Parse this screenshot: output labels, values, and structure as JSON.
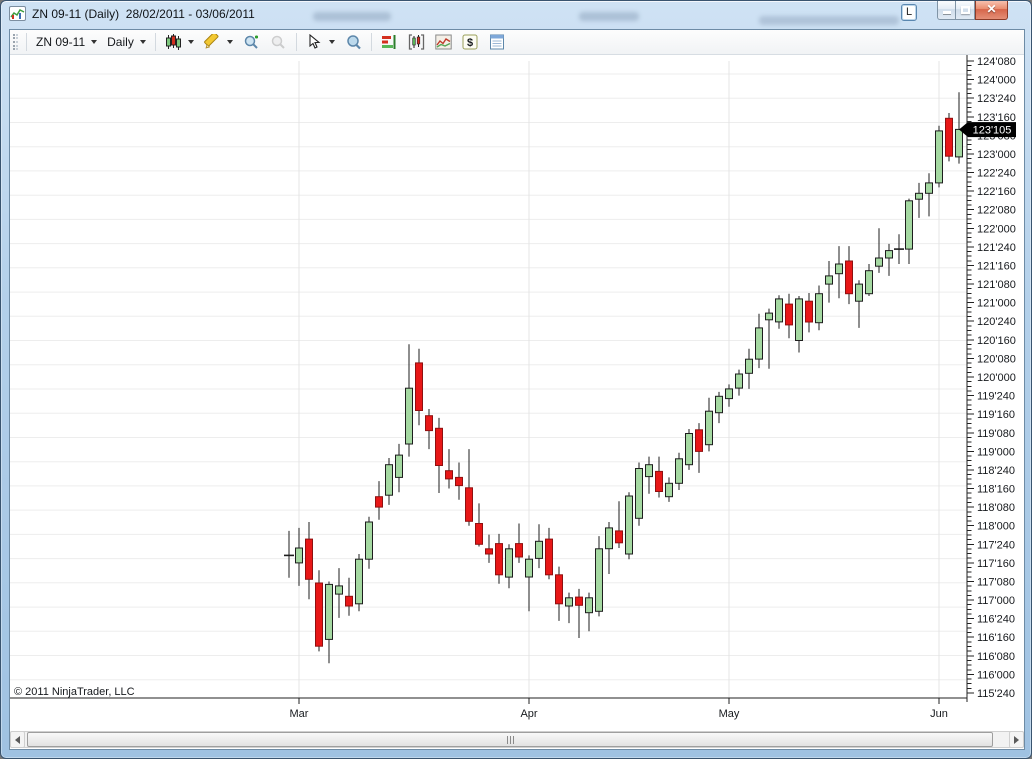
{
  "window": {
    "title": "ZN 09-11 (Daily)  28/02/2011 - 03/06/2011",
    "link_button_label": "L"
  },
  "toolbar": {
    "instrument": "ZN 09-11",
    "interval": "Daily",
    "icon_names": [
      "chart-style-candles",
      "drawing-pencil",
      "zoom-in",
      "zoom-out",
      "cursor-pointer",
      "magnifier",
      "market-depth",
      "data-series",
      "indicators",
      "account-dollar",
      "chart-properties"
    ]
  },
  "chart": {
    "copyright": "© 2011 NinjaTrader, LLC",
    "last_price_label": "123'105",
    "price_axis_labels": [
      "124'080",
      "124'000",
      "123'240",
      "123'160",
      "123'080",
      "123'000",
      "122'240",
      "122'160",
      "122'080",
      "122'000",
      "121'240",
      "121'160",
      "121'080",
      "121'000",
      "120'240",
      "120'160",
      "120'080",
      "120'000",
      "119'240",
      "119'160",
      "119'080",
      "119'000",
      "118'240",
      "118'160",
      "118'080",
      "118'000",
      "117'240",
      "117'160",
      "117'080",
      "117'000",
      "116'240",
      "116'160",
      "116'080",
      "116'000",
      "115'240"
    ]
  },
  "chart_data": {
    "type": "candlestick",
    "title": "ZN 09-11 (Daily)",
    "instrument": "ZN 09-11",
    "interval": "Daily",
    "date_range": "28/02/2011 - 03/06/2011",
    "price_format": "US Treasury 32nds (e.g. 123'105 = 123 + 10.5/32)",
    "y_axis": {
      "top_label": "124'080",
      "bottom_label": "115'240",
      "step": "0'080",
      "top_price": 124.25,
      "bottom_price": 115.75
    },
    "x_month_ticks": [
      {
        "label": "Mar",
        "index": 1
      },
      {
        "label": "Apr",
        "index": 24
      },
      {
        "label": "May",
        "index": 44
      },
      {
        "label": "Jun",
        "index": 65
      }
    ],
    "last_price": 123.328,
    "up_color": "#a5d9a2",
    "down_color": "#e81717",
    "candles": {
      "columns": [
        "open",
        "high",
        "low",
        "close"
      ],
      "values": [
        [
          117.62,
          117.93,
          117.3,
          117.6
        ],
        [
          117.5,
          117.97,
          117.19,
          117.7
        ],
        [
          117.82,
          118.05,
          117.01,
          117.28
        ],
        [
          117.23,
          117.4,
          116.31,
          116.38
        ],
        [
          116.47,
          117.25,
          116.15,
          117.21
        ],
        [
          117.08,
          117.43,
          116.76,
          117.19
        ],
        [
          117.05,
          117.3,
          116.79,
          116.92
        ],
        [
          116.95,
          117.62,
          116.85,
          117.55
        ],
        [
          117.55,
          118.12,
          117.42,
          118.05
        ],
        [
          118.39,
          118.6,
          118.08,
          118.25
        ],
        [
          118.41,
          118.91,
          118.28,
          118.82
        ],
        [
          118.65,
          119.1,
          118.45,
          118.95
        ],
        [
          119.1,
          120.44,
          118.93,
          119.85
        ],
        [
          120.19,
          120.38,
          119.35,
          119.55
        ],
        [
          119.48,
          119.57,
          119.03,
          119.28
        ],
        [
          119.31,
          119.45,
          118.44,
          118.81
        ],
        [
          118.74,
          119.03,
          118.5,
          118.63
        ],
        [
          118.65,
          118.85,
          118.35,
          118.54
        ],
        [
          118.51,
          119.03,
          118.0,
          118.06
        ],
        [
          118.03,
          118.3,
          117.72,
          117.75
        ],
        [
          117.69,
          117.88,
          117.5,
          117.62
        ],
        [
          117.76,
          117.89,
          117.22,
          117.34
        ],
        [
          117.31,
          117.75,
          117.16,
          117.69
        ],
        [
          117.76,
          118.03,
          117.5,
          117.58
        ],
        [
          117.31,
          117.6,
          116.85,
          117.55
        ],
        [
          117.56,
          118.02,
          117.43,
          117.79
        ],
        [
          117.82,
          117.97,
          117.28,
          117.34
        ],
        [
          117.34,
          117.45,
          116.72,
          116.95
        ],
        [
          116.92,
          117.1,
          116.69,
          117.03
        ],
        [
          117.04,
          117.15,
          116.49,
          116.93
        ],
        [
          116.83,
          117.1,
          116.58,
          117.03
        ],
        [
          116.85,
          117.86,
          116.78,
          117.69
        ],
        [
          117.69,
          118.05,
          117.35,
          117.97
        ],
        [
          117.93,
          118.33,
          117.7,
          117.77
        ],
        [
          117.62,
          118.45,
          117.55,
          118.4
        ],
        [
          118.1,
          118.85,
          118.0,
          118.77
        ],
        [
          118.66,
          118.93,
          118.43,
          118.82
        ],
        [
          118.73,
          118.93,
          118.38,
          118.46
        ],
        [
          118.39,
          118.65,
          118.32,
          118.57
        ],
        [
          118.57,
          118.98,
          118.48,
          118.9
        ],
        [
          118.82,
          119.3,
          118.75,
          119.24
        ],
        [
          119.29,
          119.38,
          118.71,
          119.0
        ],
        [
          119.09,
          119.72,
          119.0,
          119.54
        ],
        [
          119.52,
          119.8,
          119.38,
          119.74
        ],
        [
          119.71,
          119.9,
          119.6,
          119.84
        ],
        [
          119.85,
          120.1,
          119.75,
          120.04
        ],
        [
          120.05,
          120.38,
          119.84,
          120.24
        ],
        [
          120.24,
          120.85,
          120.12,
          120.66
        ],
        [
          120.77,
          120.92,
          120.11,
          120.86
        ],
        [
          120.74,
          121.1,
          120.65,
          121.05
        ],
        [
          120.98,
          121.12,
          120.52,
          120.7
        ],
        [
          120.49,
          121.09,
          120.33,
          121.05
        ],
        [
          121.02,
          121.13,
          120.6,
          120.74
        ],
        [
          120.73,
          121.23,
          120.63,
          121.12
        ],
        [
          121.25,
          121.56,
          121.0,
          121.36
        ],
        [
          121.39,
          121.76,
          121.06,
          121.52
        ],
        [
          121.56,
          121.76,
          120.98,
          121.12
        ],
        [
          121.02,
          121.3,
          120.66,
          121.25
        ],
        [
          121.12,
          121.52,
          121.09,
          121.43
        ],
        [
          121.49,
          122.0,
          121.4,
          121.6
        ],
        [
          121.6,
          121.79,
          121.36,
          121.7
        ],
        [
          121.72,
          121.92,
          121.52,
          121.72
        ],
        [
          121.72,
          122.4,
          121.52,
          122.37
        ],
        [
          122.39,
          122.61,
          122.14,
          122.47
        ],
        [
          122.47,
          122.74,
          122.16,
          122.61
        ],
        [
          122.61,
          123.38,
          122.55,
          123.31
        ],
        [
          123.48,
          123.55,
          122.9,
          122.97
        ],
        [
          122.96,
          123.83,
          122.87,
          123.33
        ]
      ]
    }
  }
}
